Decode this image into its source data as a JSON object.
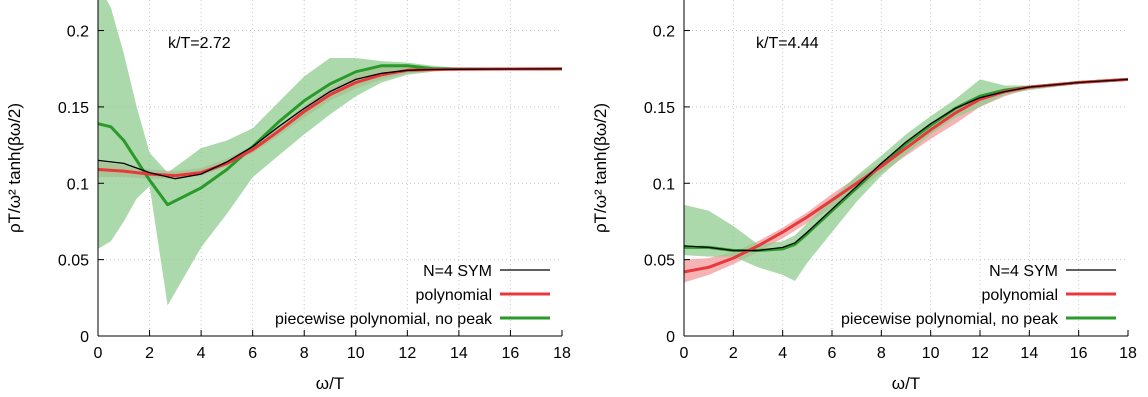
{
  "chart_data": [
    {
      "type": "line",
      "panel": "left",
      "xlabel": "ω/T",
      "ylabel": "ρT/ω² tanh(βω/2)",
      "annotation": "k/T=2.72",
      "xlim": [
        0,
        18
      ],
      "ylim": [
        0,
        0.22
      ],
      "x_ticks": [
        0,
        2,
        4,
        6,
        8,
        10,
        12,
        14,
        16,
        18
      ],
      "y_ticks": [
        0,
        0.05,
        0.1,
        0.15,
        0.2
      ],
      "y_tick_labels": [
        "0",
        "0.05",
        "0.1",
        "0.15",
        "0.2"
      ],
      "grid": true,
      "legend_position": "bottom-right",
      "series": [
        {
          "name": "N=4 SYM",
          "color": "#000000",
          "x": [
            0,
            1,
            2,
            3,
            4,
            5,
            6,
            7,
            8,
            9,
            10,
            11,
            12,
            13,
            14,
            16,
            18
          ],
          "y": [
            0.115,
            0.113,
            0.107,
            0.103,
            0.106,
            0.114,
            0.124,
            0.137,
            0.149,
            0.16,
            0.168,
            0.172,
            0.174,
            0.1745,
            0.1747,
            0.1748,
            0.1749
          ]
        },
        {
          "name": "polynomial",
          "color": "#e8383b",
          "band_color": "#f29a9a",
          "x": [
            0,
            1,
            2,
            3,
            4,
            5,
            6,
            7,
            8,
            9,
            10,
            11,
            12,
            13,
            14,
            16,
            18
          ],
          "y": [
            0.109,
            0.108,
            0.106,
            0.105,
            0.107,
            0.113,
            0.122,
            0.134,
            0.147,
            0.158,
            0.166,
            0.171,
            0.174,
            0.1745,
            0.1747,
            0.1748,
            0.1749
          ],
          "lower": [
            0.104,
            0.104,
            0.103,
            0.103,
            0.105,
            0.111,
            0.12,
            0.131,
            0.143,
            0.154,
            0.162,
            0.168,
            0.172,
            0.1735,
            0.1743,
            0.1746,
            0.1748
          ],
          "upper": [
            0.114,
            0.112,
            0.109,
            0.108,
            0.11,
            0.116,
            0.125,
            0.137,
            0.151,
            0.163,
            0.171,
            0.177,
            0.178,
            0.176,
            0.1752,
            0.175,
            0.175
          ]
        },
        {
          "name": "piecewise polynomial, no peak",
          "color": "#2a9a2a",
          "band_color": "#8fcc8f",
          "x": [
            0,
            0.5,
            1,
            1.5,
            2,
            2.7,
            4,
            5,
            6,
            7,
            8,
            9,
            10,
            11,
            12,
            13,
            14,
            16,
            18
          ],
          "y": [
            0.139,
            0.137,
            0.128,
            0.115,
            0.102,
            0.086,
            0.097,
            0.109,
            0.124,
            0.14,
            0.154,
            0.165,
            0.173,
            0.177,
            0.177,
            0.175,
            0.1748,
            0.1748,
            0.1749
          ],
          "lower": [
            0.057,
            0.062,
            0.075,
            0.09,
            0.098,
            0.02,
            0.058,
            0.08,
            0.104,
            0.118,
            0.132,
            0.145,
            0.157,
            0.166,
            0.171,
            0.173,
            0.1744,
            0.1746,
            0.1748
          ],
          "upper": [
            0.23,
            0.215,
            0.185,
            0.15,
            0.12,
            0.107,
            0.123,
            0.128,
            0.136,
            0.153,
            0.17,
            0.182,
            0.182,
            0.18,
            0.179,
            0.177,
            0.1755,
            0.175,
            0.175
          ]
        }
      ]
    },
    {
      "type": "line",
      "panel": "right",
      "xlabel": "ω/T",
      "ylabel": "ρT/ω² tanh(βω/2)",
      "annotation": "k/T=4.44",
      "xlim": [
        0,
        18
      ],
      "ylim": [
        0,
        0.22
      ],
      "x_ticks": [
        0,
        2,
        4,
        6,
        8,
        10,
        12,
        14,
        16,
        18
      ],
      "y_ticks": [
        0,
        0.05,
        0.1,
        0.15,
        0.2
      ],
      "y_tick_labels": [
        "0",
        "0.05",
        "0.1",
        "0.15",
        "0.2"
      ],
      "grid": true,
      "legend_position": "bottom-right",
      "series": [
        {
          "name": "N=4 SYM",
          "color": "#000000",
          "x": [
            0,
            1,
            2,
            3,
            4,
            4.5,
            5,
            6,
            7,
            8,
            9,
            10,
            11,
            12,
            13,
            14,
            16,
            18
          ],
          "y": [
            0.059,
            0.058,
            0.056,
            0.056,
            0.058,
            0.061,
            0.068,
            0.083,
            0.098,
            0.113,
            0.127,
            0.139,
            0.149,
            0.156,
            0.16,
            0.163,
            0.166,
            0.168
          ]
        },
        {
          "name": "polynomial",
          "color": "#e8383b",
          "band_color": "#f29a9a",
          "x": [
            0,
            1,
            2,
            3,
            4,
            5,
            6,
            7,
            8,
            9,
            10,
            11,
            12,
            13,
            14,
            16,
            18
          ],
          "y": [
            0.042,
            0.045,
            0.051,
            0.059,
            0.068,
            0.078,
            0.089,
            0.1,
            0.111,
            0.123,
            0.135,
            0.146,
            0.155,
            0.16,
            0.163,
            0.166,
            0.168
          ],
          "lower": [
            0.035,
            0.04,
            0.047,
            0.055,
            0.064,
            0.074,
            0.084,
            0.095,
            0.107,
            0.118,
            0.129,
            0.139,
            0.15,
            0.157,
            0.162,
            0.165,
            0.168
          ],
          "upper": [
            0.05,
            0.051,
            0.055,
            0.062,
            0.071,
            0.081,
            0.093,
            0.104,
            0.114,
            0.127,
            0.139,
            0.15,
            0.158,
            0.162,
            0.164,
            0.166,
            0.168
          ]
        },
        {
          "name": "piecewise polynomial, no peak",
          "color": "#2a9a2a",
          "band_color": "#8fcc8f",
          "x": [
            0,
            1,
            2,
            3,
            4,
            4.5,
            5,
            6,
            7,
            8,
            9,
            10,
            11,
            12,
            13,
            14,
            16,
            18
          ],
          "y": [
            0.058,
            0.058,
            0.056,
            0.056,
            0.057,
            0.06,
            0.067,
            0.082,
            0.097,
            0.112,
            0.126,
            0.138,
            0.149,
            0.157,
            0.161,
            0.163,
            0.166,
            0.168
          ],
          "lower": [
            0.053,
            0.052,
            0.052,
            0.045,
            0.04,
            0.036,
            0.048,
            0.068,
            0.088,
            0.105,
            0.119,
            0.132,
            0.143,
            0.15,
            0.158,
            0.161,
            0.165,
            0.168
          ],
          "upper": [
            0.086,
            0.082,
            0.072,
            0.06,
            0.062,
            0.066,
            0.074,
            0.09,
            0.105,
            0.118,
            0.132,
            0.144,
            0.155,
            0.168,
            0.164,
            0.164,
            0.166,
            0.168
          ]
        }
      ]
    }
  ]
}
